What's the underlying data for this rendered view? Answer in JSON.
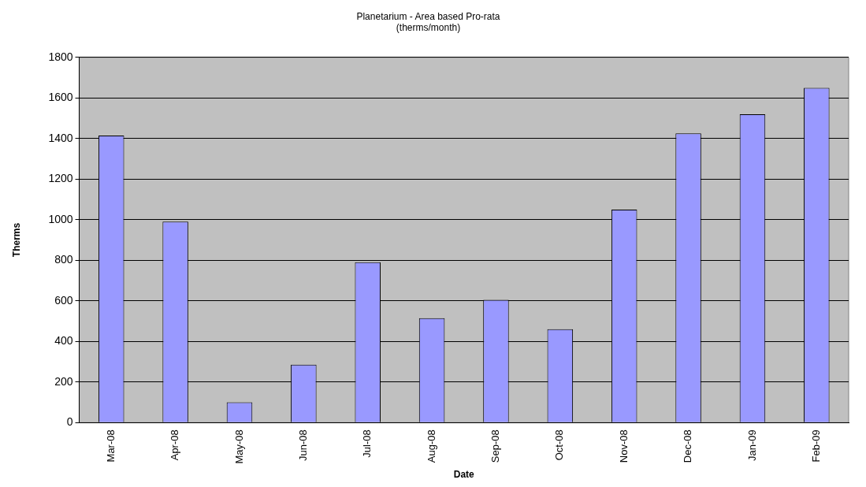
{
  "chart_data": {
    "type": "bar",
    "title": "Planetarium - Area based Pro-rata",
    "subtitle": "(therms/month)",
    "xlabel": "Date",
    "ylabel": "Therms",
    "categories": [
      "Mar-08",
      "Apr-08",
      "May-08",
      "Jun-08",
      "Jul-08",
      "Aug-08",
      "Sep-08",
      "Oct-08",
      "Nov-08",
      "Dec-08",
      "Jan-09",
      "Feb-09"
    ],
    "values": [
      1415,
      990,
      100,
      285,
      790,
      515,
      605,
      460,
      1050,
      1425,
      1520,
      1650
    ],
    "color": "#9999ff",
    "ylim": [
      0,
      1800
    ],
    "yticks": [
      0,
      200,
      400,
      600,
      800,
      1000,
      1200,
      1400,
      1600,
      1800
    ],
    "grid": "y",
    "legend": false
  }
}
